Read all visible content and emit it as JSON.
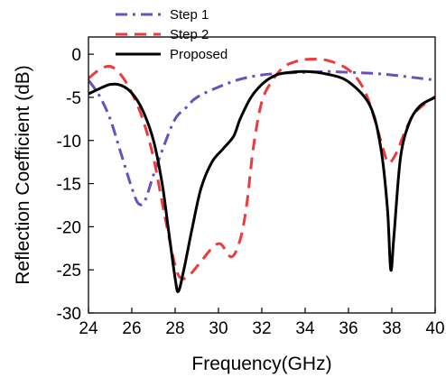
{
  "chart_data": {
    "type": "line",
    "title": "",
    "xlabel": "Frequency(GHz)",
    "ylabel": "Reflection Coefficient (dB)",
    "xlim": [
      24,
      40
    ],
    "ylim": [
      -30,
      2
    ],
    "xticks": [
      24,
      26,
      28,
      30,
      32,
      34,
      36,
      38,
      40
    ],
    "yticks": [
      0,
      -5,
      -10,
      -15,
      -20,
      -25,
      -30
    ],
    "grid": false,
    "legend_position": "top-center",
    "series": [
      {
        "name": "Step 1",
        "color": "#6a4fc0",
        "dash": "dash-dot",
        "points": [
          [
            24,
            -3.0
          ],
          [
            24.5,
            -4.8
          ],
          [
            25,
            -7.5
          ],
          [
            25.5,
            -11.5
          ],
          [
            26,
            -15.5
          ],
          [
            26.3,
            -17.3
          ],
          [
            26.6,
            -17.0
          ],
          [
            27,
            -14.0
          ],
          [
            27.5,
            -10.5
          ],
          [
            28,
            -7.5
          ],
          [
            28.5,
            -6.2
          ],
          [
            29,
            -5.0
          ],
          [
            30,
            -3.8
          ],
          [
            31,
            -2.9
          ],
          [
            32,
            -2.4
          ],
          [
            33,
            -2.2
          ],
          [
            34,
            -2.1
          ],
          [
            35,
            -2.0
          ],
          [
            36,
            -2.1
          ],
          [
            37,
            -2.2
          ],
          [
            38,
            -2.4
          ],
          [
            39,
            -2.7
          ],
          [
            40,
            -3.0
          ]
        ]
      },
      {
        "name": "Step 2",
        "color": "#ee3a3a",
        "dash": "dash",
        "points": [
          [
            24,
            -2.8
          ],
          [
            24.5,
            -1.8
          ],
          [
            25,
            -1.4
          ],
          [
            25.5,
            -2.4
          ],
          [
            26,
            -4.5
          ],
          [
            26.5,
            -7.5
          ],
          [
            27,
            -12.0
          ],
          [
            27.5,
            -18.5
          ],
          [
            28,
            -24.5
          ],
          [
            28.3,
            -26.0
          ],
          [
            28.7,
            -25.5
          ],
          [
            29.2,
            -24.0
          ],
          [
            29.7,
            -22.5
          ],
          [
            30.1,
            -22.0
          ],
          [
            30.6,
            -23.5
          ],
          [
            31,
            -21.5
          ],
          [
            31.3,
            -17.5
          ],
          [
            31.6,
            -11.0
          ],
          [
            32,
            -5.5
          ],
          [
            32.5,
            -3.0
          ],
          [
            33,
            -1.5
          ],
          [
            33.5,
            -0.9
          ],
          [
            34,
            -0.6
          ],
          [
            35,
            -0.7
          ],
          [
            36,
            -1.8
          ],
          [
            36.7,
            -4.0
          ],
          [
            37.2,
            -7.5
          ],
          [
            37.6,
            -11.0
          ],
          [
            37.85,
            -12.6
          ],
          [
            38.2,
            -11.5
          ],
          [
            38.6,
            -9.0
          ],
          [
            39,
            -7.0
          ],
          [
            39.5,
            -5.8
          ],
          [
            40,
            -4.9
          ]
        ]
      },
      {
        "name": "Proposed",
        "color": "#000000",
        "dash": "solid",
        "points": [
          [
            24,
            -4.6
          ],
          [
            24.5,
            -4.0
          ],
          [
            25,
            -3.5
          ],
          [
            25.5,
            -3.6
          ],
          [
            26,
            -4.5
          ],
          [
            26.5,
            -6.5
          ],
          [
            27,
            -10.0
          ],
          [
            27.4,
            -15.0
          ],
          [
            27.7,
            -20.5
          ],
          [
            28,
            -26.0
          ],
          [
            28.15,
            -27.5
          ],
          [
            28.4,
            -25.0
          ],
          [
            28.8,
            -20.0
          ],
          [
            29.2,
            -15.5
          ],
          [
            29.7,
            -12.5
          ],
          [
            30.2,
            -11.0
          ],
          [
            30.7,
            -9.5
          ],
          [
            31,
            -7.5
          ],
          [
            31.5,
            -5.0
          ],
          [
            32,
            -3.5
          ],
          [
            32.5,
            -2.6
          ],
          [
            33,
            -2.2
          ],
          [
            34,
            -2.0
          ],
          [
            35,
            -2.3
          ],
          [
            36,
            -3.2
          ],
          [
            37,
            -6.0
          ],
          [
            37.5,
            -11.0
          ],
          [
            37.8,
            -18.0
          ],
          [
            37.95,
            -25.0
          ],
          [
            38.1,
            -21.0
          ],
          [
            38.4,
            -12.0
          ],
          [
            38.8,
            -8.0
          ],
          [
            39.3,
            -6.0
          ],
          [
            40,
            -5.0
          ]
        ]
      }
    ]
  }
}
